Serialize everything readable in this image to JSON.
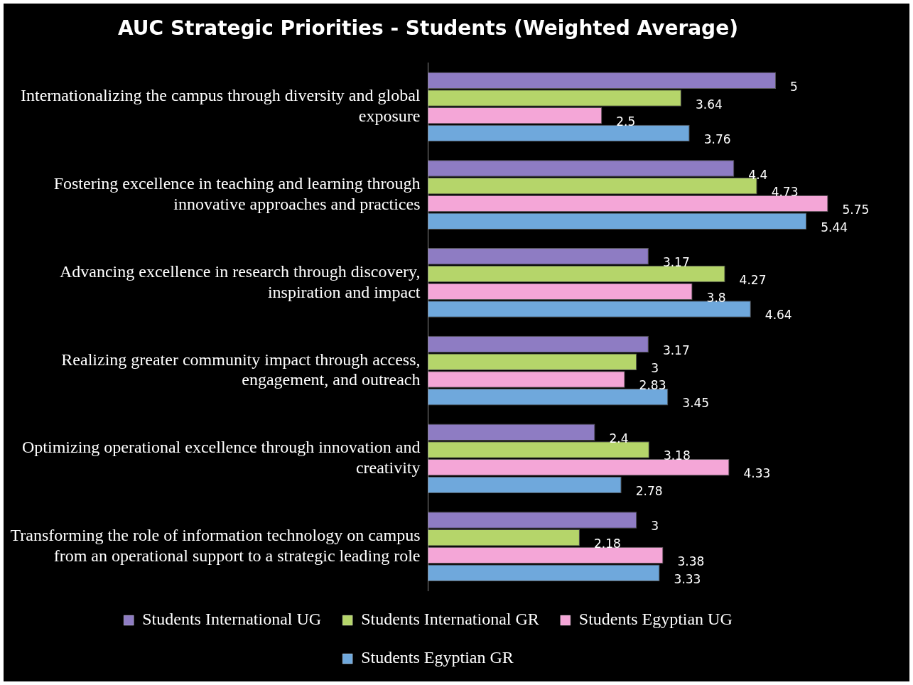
{
  "chart_data": {
    "type": "bar",
    "orientation": "horizontal",
    "title": "AUC Strategic Priorities - Students (Weighted Average)",
    "categories": [
      "Internationalizing the campus through diversity and global exposure",
      "Fostering excellence in teaching and learning through innovative approaches and practices",
      "Advancing excellence in research through discovery, inspiration and impact",
      "Realizing greater community impact through access, engagement, and outreach",
      "Optimizing operational excellence through innovation and creativity",
      "Transforming the role of information technology on campus from an operational support to a strategic leading role"
    ],
    "series": [
      {
        "name": "Students International UG",
        "color": "#8e7cc3",
        "values": [
          5,
          4.4,
          3.17,
          3.17,
          2.4,
          3
        ]
      },
      {
        "name": "Students International GR",
        "color": "#b5d56a",
        "values": [
          3.64,
          4.73,
          4.27,
          3,
          3.18,
          2.18
        ]
      },
      {
        "name": "Students Egyptian UG",
        "color": "#f4a6d7",
        "values": [
          2.5,
          5.75,
          3.8,
          2.83,
          4.33,
          3.38
        ]
      },
      {
        "name": "Students Egyptian GR",
        "color": "#6fa8dc",
        "values": [
          3.76,
          5.44,
          4.64,
          3.45,
          2.78,
          3.33
        ]
      }
    ],
    "data_labels": true,
    "legend": "bottom",
    "tick_labels": "y",
    "grid": false
  }
}
